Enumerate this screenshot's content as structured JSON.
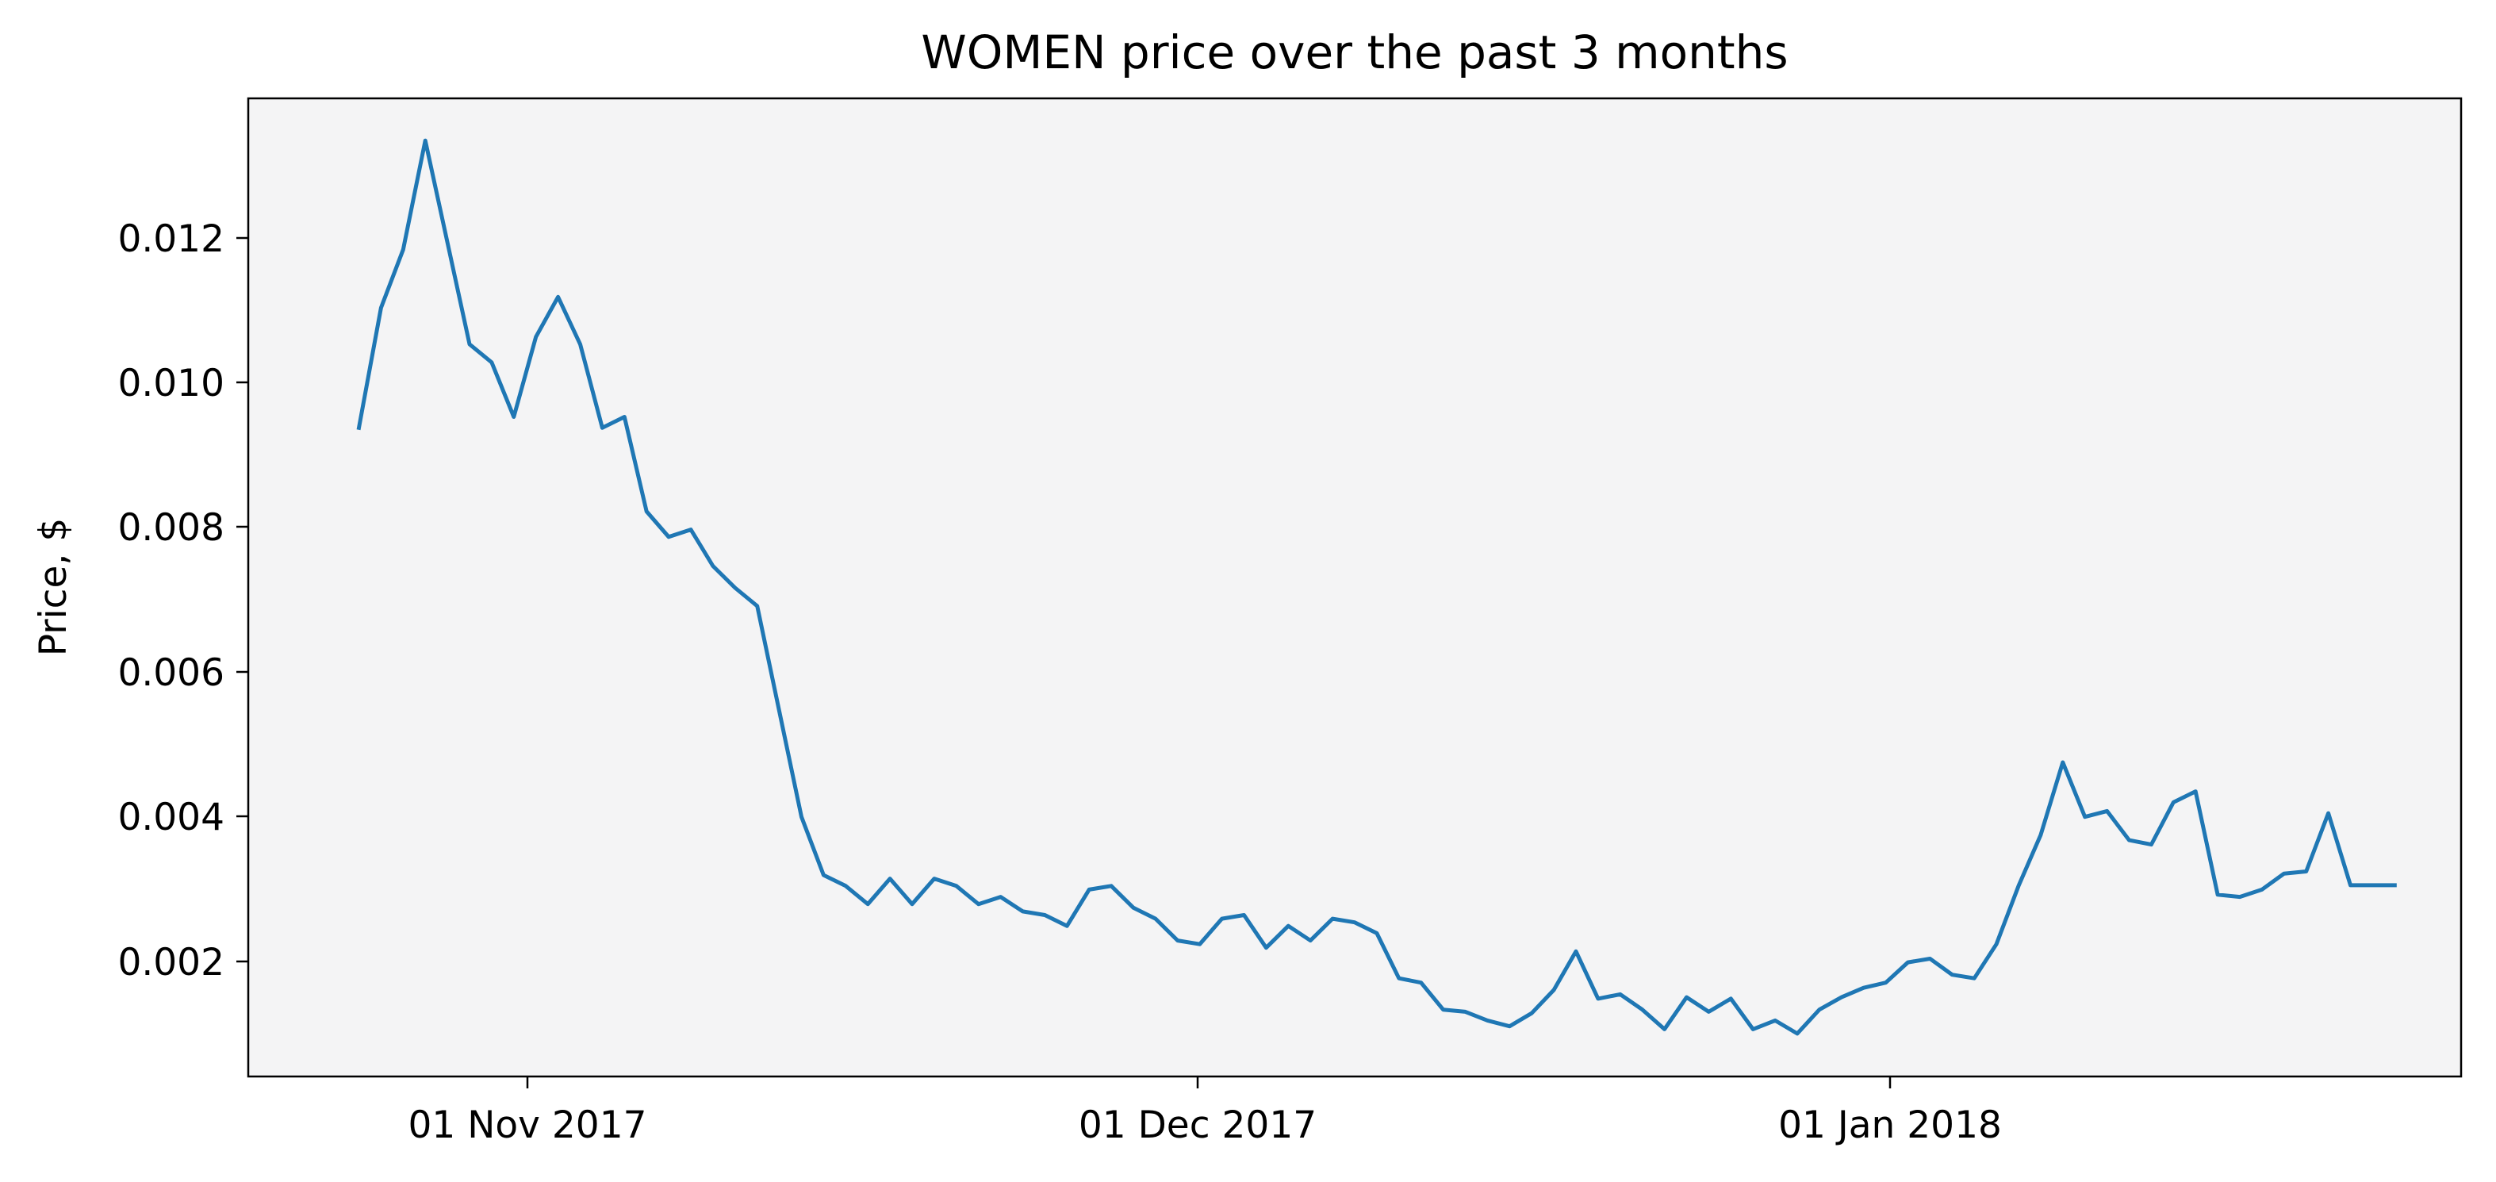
{
  "chart_data": {
    "type": "line",
    "title": "WOMEN price over the past 3 months",
    "xlabel": "",
    "ylabel": "Price, $",
    "x_tick_labels": [
      "01 Nov 2017",
      "01 Dec 2017",
      "01 Jan 2018"
    ],
    "y_tick_labels": [
      "0.002",
      "0.004",
      "0.006",
      "0.008",
      "0.010",
      "0.012"
    ],
    "ylim": [
      0.00043,
      0.01388
    ],
    "xlim": [
      "2017-10-18",
      "2018-01-26"
    ],
    "grid": false,
    "legend": "none",
    "colors": {
      "background": "#f4f4f5",
      "line": "#1f77b4",
      "axes": "#000000"
    },
    "series": [
      {
        "x": [
          "2017-10-23",
          "2017-10-24",
          "2017-10-25",
          "2017-10-26",
          "2017-10-27",
          "2017-10-28",
          "2017-10-29",
          "2017-10-30",
          "2017-10-31",
          "2017-11-01",
          "2017-11-02",
          "2017-11-03",
          "2017-11-04",
          "2017-11-05",
          "2017-11-06",
          "2017-11-07",
          "2017-11-08",
          "2017-11-09",
          "2017-11-10",
          "2017-11-11",
          "2017-11-12",
          "2017-11-13",
          "2017-11-14",
          "2017-11-15",
          "2017-11-16",
          "2017-11-17",
          "2017-11-18",
          "2017-11-19",
          "2017-11-20",
          "2017-11-21",
          "2017-11-22",
          "2017-11-23",
          "2017-11-24",
          "2017-11-25",
          "2017-11-26",
          "2017-11-27",
          "2017-11-28",
          "2017-11-29",
          "2017-11-30",
          "2017-12-01",
          "2017-12-02",
          "2017-12-03",
          "2017-12-04",
          "2017-12-05",
          "2017-12-06",
          "2017-12-07",
          "2017-12-08",
          "2017-12-09",
          "2017-12-10",
          "2017-12-11",
          "2017-12-12",
          "2017-12-13",
          "2017-12-14",
          "2017-12-15",
          "2017-12-16",
          "2017-12-17",
          "2017-12-18",
          "2017-12-19",
          "2017-12-20",
          "2017-12-21",
          "2017-12-22",
          "2017-12-23",
          "2017-12-24",
          "2017-12-25",
          "2017-12-26",
          "2017-12-27",
          "2017-12-28",
          "2017-12-29",
          "2017-12-30",
          "2017-12-31",
          "2018-01-01",
          "2018-01-02",
          "2018-01-03",
          "2018-01-04",
          "2018-01-05",
          "2018-01-06",
          "2018-01-07",
          "2018-01-08",
          "2018-01-09",
          "2018-01-10",
          "2018-01-11",
          "2018-01-12",
          "2018-01-13",
          "2018-01-14",
          "2018-01-15",
          "2018-01-16",
          "2018-01-17",
          "2018-01-18",
          "2018-01-19",
          "2018-01-20",
          "2018-01-21",
          "2018-01-22",
          "2018-01-23"
        ],
        "values": [
          0.00935,
          0.011,
          0.0118,
          0.0133,
          0.0119,
          0.0105,
          0.01025,
          0.0095,
          0.0106,
          0.01115,
          0.0105,
          0.00935,
          0.0095,
          0.0082,
          0.00785,
          0.00795,
          0.00745,
          0.00715,
          0.0069,
          0.00545,
          0.004,
          0.0032,
          0.00305,
          0.0028,
          0.00315,
          0.0028,
          0.00315,
          0.00305,
          0.0028,
          0.0029,
          0.0027,
          0.00265,
          0.0025,
          0.003,
          0.00305,
          0.00275,
          0.0026,
          0.0023,
          0.00225,
          0.0026,
          0.00265,
          0.0022,
          0.0025,
          0.0023,
          0.0026,
          0.00255,
          0.0024,
          0.00178,
          0.00172,
          0.00135,
          0.00132,
          0.0012,
          0.00112,
          0.0013,
          0.00162,
          0.00215,
          0.0015,
          0.00156,
          0.00135,
          0.00108,
          0.00152,
          0.00132,
          0.0015,
          0.00108,
          0.0012,
          0.00102,
          0.00135,
          0.00152,
          0.00165,
          0.00172,
          0.002,
          0.00205,
          0.00183,
          0.00178,
          0.00225,
          0.00305,
          0.00375,
          0.00475,
          0.004,
          0.00408,
          0.00368,
          0.00362,
          0.0042,
          0.00435,
          0.00293,
          0.0029,
          0.003,
          0.00322,
          0.00325,
          0.00405,
          0.00306,
          0.00306,
          0.00306
        ]
      }
    ]
  }
}
